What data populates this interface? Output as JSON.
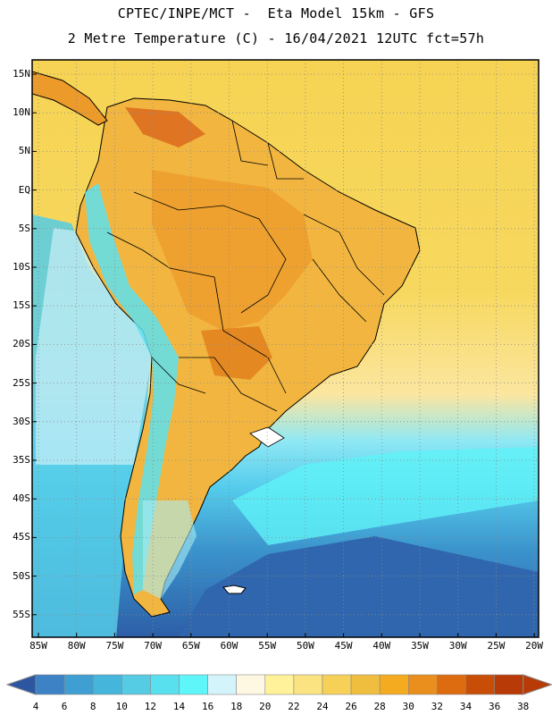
{
  "header": {
    "line1": "CPTEC/INPE/MCT -  Eta Model 15km - GFS",
    "line2": "2 Metre Temperature (C) - 16/04/2021 12UTC fct=57h"
  },
  "latitude_labels": [
    "15N",
    "10N",
    "5N",
    "EQ",
    "5S",
    "10S",
    "15S",
    "20S",
    "25S",
    "30S",
    "35S",
    "40S",
    "45S",
    "50S",
    "55S"
  ],
  "longitude_labels": [
    "85W",
    "80W",
    "75W",
    "70W",
    "65W",
    "60W",
    "55W",
    "50W",
    "45W",
    "40W",
    "35W",
    "30W",
    "25W",
    "20W"
  ],
  "colorbar": {
    "values": [
      "4",
      "6",
      "8",
      "10",
      "12",
      "14",
      "16",
      "18",
      "20",
      "22",
      "24",
      "26",
      "28",
      "30",
      "32",
      "34",
      "36",
      "38"
    ],
    "colors": [
      "#3a6fb4",
      "#3d82c4",
      "#3f9fd2",
      "#45b5dc",
      "#55cbe4",
      "#59e0ee",
      "#5ff6f9",
      "#d4f4fb",
      "#fef8e2",
      "#fff29a",
      "#fbe382",
      "#f7d157",
      "#f0be3e",
      "#f4ab1f",
      "#ea8f1d",
      "#dd6b0f",
      "#c84e08",
      "#b83a06",
      "#2c56a0"
    ]
  },
  "colors": {
    "ocean_cold": "#2c5fa8",
    "ocean_mid": "#3b93cc",
    "ocean_cool": "#52c7e2",
    "ocean_cyan": "#5ff2f8",
    "ocean_warm": "#fbe08a",
    "tropical_sea": "#f6d05a",
    "land_hot": "#ec9a2a",
    "land_warm": "#f2b640"
  }
}
